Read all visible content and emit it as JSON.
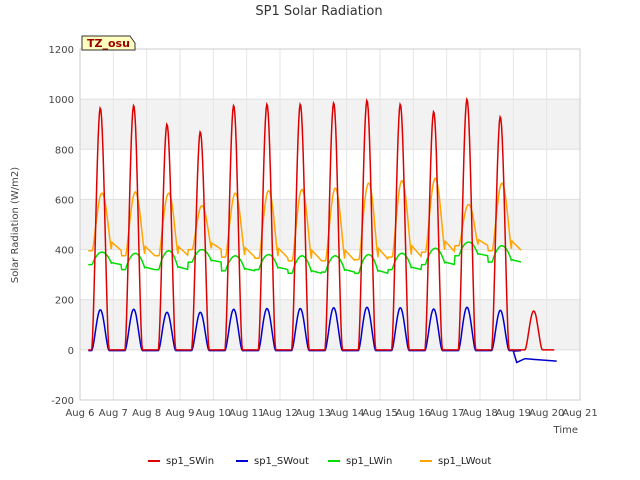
{
  "chart_data": {
    "type": "line",
    "title": "SP1 Solar Radiation",
    "xlabel": "Time",
    "ylabel": "Solar Radiation (W/m2)",
    "tag": "TZ_osu",
    "ylim": [
      -200,
      1200
    ],
    "xlim": [
      "Aug 6",
      "Aug 21"
    ],
    "y_ticks": [
      -200,
      0,
      200,
      400,
      600,
      800,
      1000,
      1200
    ],
    "x_ticks": [
      "Aug 6",
      "Aug 7",
      "Aug 8",
      "Aug 9",
      "Aug 10",
      "Aug 11",
      "Aug 12",
      "Aug 13",
      "Aug 14",
      "Aug 15",
      "Aug 16",
      "Aug 17",
      "Aug 18",
      "Aug 19",
      "Aug 20",
      "Aug 21"
    ],
    "grid": true,
    "legend_position": "bottom",
    "series": [
      {
        "name": "sp1_SWin",
        "color": "#dd0000",
        "daily_peak_dates": [
          "Aug 6",
          "Aug 7",
          "Aug 8",
          "Aug 9",
          "Aug 10",
          "Aug 11",
          "Aug 12",
          "Aug 13",
          "Aug 14",
          "Aug 15",
          "Aug 16",
          "Aug 17",
          "Aug 18",
          "Aug 19"
        ],
        "daily_peak_values": [
          965,
          975,
          900,
          870,
          975,
          980,
          980,
          985,
          995,
          980,
          950,
          1000,
          930,
          155
        ],
        "night_value": 0
      },
      {
        "name": "sp1_SWout",
        "color": "#0000cc",
        "daily_peak_dates": [
          "Aug 6",
          "Aug 7",
          "Aug 8",
          "Aug 9",
          "Aug 10",
          "Aug 11",
          "Aug 12",
          "Aug 13",
          "Aug 14",
          "Aug 15",
          "Aug 16",
          "Aug 17",
          "Aug 18"
        ],
        "daily_peak_values": [
          160,
          162,
          150,
          150,
          162,
          165,
          165,
          168,
          170,
          168,
          163,
          170,
          158
        ],
        "night_value": -3,
        "tail_dates": [
          "Aug 19.1",
          "Aug 19.35",
          "Aug 19.6",
          "Aug 20",
          "Aug 20.3"
        ],
        "tail_values": [
          -50,
          -35,
          -38,
          -42,
          -45
        ]
      },
      {
        "name": "sp1_LWin",
        "color": "#00dd00",
        "daily_day_values": [
          390,
          385,
          395,
          400,
          375,
          380,
          375,
          375,
          380,
          385,
          405,
          430,
          415
        ],
        "daily_night_values": [
          340,
          320,
          320,
          350,
          315,
          320,
          305,
          310,
          305,
          320,
          340,
          375,
          350
        ]
      },
      {
        "name": "sp1_LWout",
        "color": "#ffa500",
        "daily_peak_values": [
          625,
          630,
          625,
          575,
          625,
          635,
          640,
          645,
          665,
          675,
          685,
          580,
          665
        ],
        "daily_night_values": [
          395,
          375,
          375,
          400,
          370,
          365,
          355,
          355,
          360,
          370,
          390,
          415,
          395
        ]
      }
    ]
  }
}
